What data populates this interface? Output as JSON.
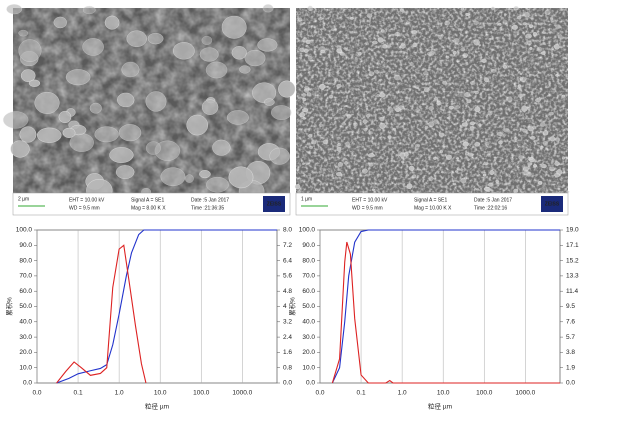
{
  "sem_images": [
    {
      "scale": "2 µm",
      "eht": "EHT = 10.00 kV",
      "wd": "WD = 9.5 mm",
      "signal": "Signal A = SE1",
      "mag": "Mag = 8.00 K X",
      "date": "Date :5 Jan 2017",
      "time": "Time :21:36:35",
      "brand": "ZEISS"
    },
    {
      "scale": "1 µm",
      "eht": "EHT = 10.00 kV",
      "wd": "WD = 9.5 mm",
      "signal": "Signal A = SE1",
      "mag": "Mag = 10.00 K X",
      "date": "Date :5 Jan 2017",
      "time": "Time :22:02:16",
      "brand": "ZEISS"
    }
  ],
  "chart_data": [
    {
      "type": "line",
      "xlabel": "粒径 µm",
      "ylabel": "累积%",
      "log_x": true,
      "grid": true,
      "xlim": [
        0.01,
        7000
      ],
      "xticks": [
        {
          "value": 0.01,
          "label": "0.0"
        },
        {
          "value": 0.1,
          "label": "0.1"
        },
        {
          "value": 1,
          "label": "1.0"
        },
        {
          "value": 10,
          "label": "10.0"
        },
        {
          "value": 100,
          "label": "100.0"
        },
        {
          "value": 1000,
          "label": "1000.0"
        }
      ],
      "ylim": [
        0,
        100
      ],
      "yticks": [
        {
          "value": 0,
          "label": "0.0"
        },
        {
          "value": 10,
          "label": "10.0"
        },
        {
          "value": 20,
          "label": "20.0"
        },
        {
          "value": 30,
          "label": "30.0"
        },
        {
          "value": 40,
          "label": "40.0"
        },
        {
          "value": 50,
          "label": "50.0"
        },
        {
          "value": 60,
          "label": "60.0"
        },
        {
          "value": 70,
          "label": "70.0"
        },
        {
          "value": 80,
          "label": "80.0"
        },
        {
          "value": 90,
          "label": "90.0"
        },
        {
          "value": 100,
          "label": "100.0"
        }
      ],
      "y2lim": [
        0,
        8
      ],
      "y2ticks": [
        {
          "value": 0,
          "label": "0.0"
        },
        0.8,
        1.6,
        2.4,
        3.2,
        4.0,
        4.8,
        5.6,
        6.4,
        7.2,
        {
          "value": 8,
          "label": "8.0"
        }
      ],
      "series": [
        {
          "color": "#2233cc",
          "x": [
            0.03,
            0.06,
            0.1,
            0.2,
            0.35,
            0.5,
            0.7,
            1,
            1.5,
            2,
            3,
            4,
            10,
            7000
          ],
          "values": [
            0,
            3,
            6,
            8,
            9.5,
            12,
            25,
            45,
            70,
            85,
            97,
            100,
            100,
            100
          ]
        },
        {
          "color": "#dd2222",
          "axis": "y2",
          "x": [
            0.03,
            0.05,
            0.08,
            0.12,
            0.2,
            0.35,
            0.5,
            0.7,
            1,
            1.3,
            1.7,
            2.5,
            3.5,
            4.5
          ],
          "values": [
            0,
            0.6,
            1.1,
            0.8,
            0.4,
            0.5,
            0.8,
            5,
            7,
            7.2,
            5.5,
            3,
            1,
            0
          ]
        }
      ]
    },
    {
      "type": "line",
      "xlabel": "粒径 µm",
      "ylabel": "累积%",
      "log_x": true,
      "grid": true,
      "xlim": [
        0.01,
        7000
      ],
      "xticks": [
        {
          "value": 0.01,
          "label": "0.0"
        },
        {
          "value": 0.1,
          "label": "0.1"
        },
        {
          "value": 1,
          "label": "1.0"
        },
        {
          "value": 10,
          "label": "10.0"
        },
        {
          "value": 100,
          "label": "100.0"
        },
        {
          "value": 1000,
          "label": "1000.0"
        }
      ],
      "ylim": [
        0,
        100
      ],
      "yticks": [
        {
          "value": 0,
          "label": "0.0"
        },
        {
          "value": 10,
          "label": "10.0"
        },
        {
          "value": 20,
          "label": "20.0"
        },
        {
          "value": 30,
          "label": "30.0"
        },
        {
          "value": 40,
          "label": "40.0"
        },
        {
          "value": 50,
          "label": "50.0"
        },
        {
          "value": 60,
          "label": "60.0"
        },
        {
          "value": 70,
          "label": "70.0"
        },
        {
          "value": 80,
          "label": "80.0"
        },
        {
          "value": 90,
          "label": "90.0"
        },
        {
          "value": 100,
          "label": "100.0"
        }
      ],
      "y2lim": [
        0,
        19
      ],
      "y2ticks": [
        {
          "value": 0,
          "label": "0.0"
        },
        1.9,
        3.8,
        5.7,
        7.6,
        9.5,
        11.4,
        13.3,
        15.2,
        17.1,
        {
          "value": 19,
          "label": "19.0"
        }
      ],
      "series": [
        {
          "color": "#2233cc",
          "x": [
            0.02,
            0.03,
            0.04,
            0.05,
            0.07,
            0.1,
            0.15,
            7000
          ],
          "values": [
            0,
            10,
            40,
            70,
            92,
            99,
            100,
            100
          ]
        },
        {
          "color": "#dd2222",
          "axis": "y2",
          "x": [
            0.02,
            0.03,
            0.04,
            0.045,
            0.055,
            0.07,
            0.1,
            0.15,
            0.4,
            0.5,
            0.6,
            7000
          ],
          "values": [
            0,
            3,
            15,
            17.5,
            16,
            8,
            1,
            0,
            0,
            0.3,
            0,
            0
          ]
        }
      ]
    }
  ]
}
